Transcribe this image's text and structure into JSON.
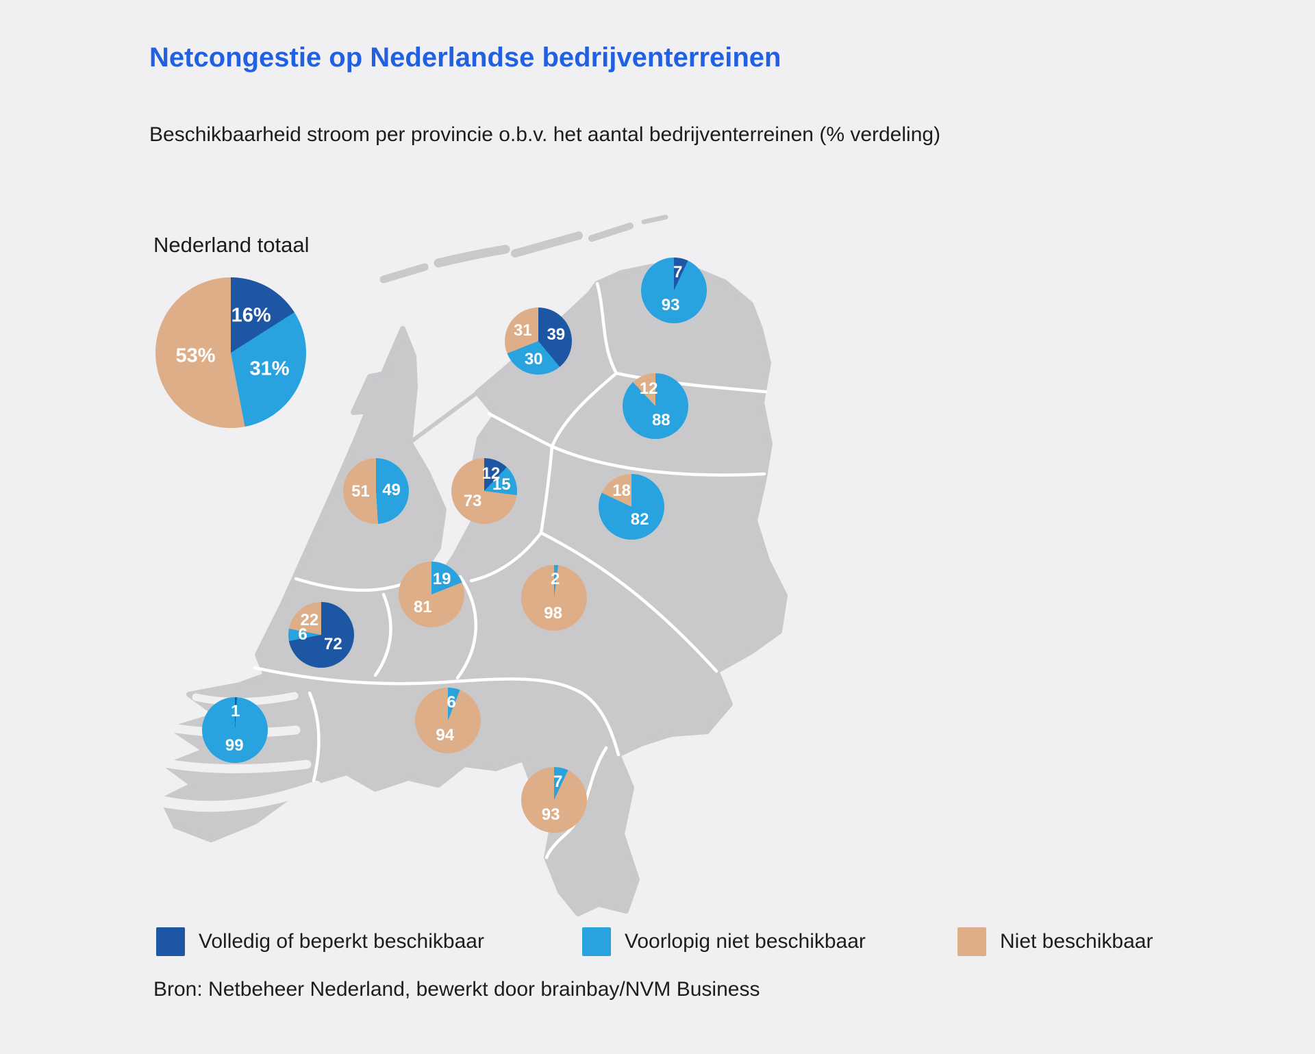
{
  "header": {
    "title": "Netcongestie op Nederlandse bedrijventerreinen",
    "subtitle": "Beschikbaarheid stroom per provincie o.b.v. het aantal bedrijventerreinen (% verdeling)"
  },
  "map_label": "Nederland totaal",
  "legend": {
    "items": [
      {
        "key": "volledig",
        "label": "Volledig of beperkt beschikbaar"
      },
      {
        "key": "voorlopig",
        "label": "Voorlopig niet beschikbaar"
      },
      {
        "key": "niet",
        "label": "Niet beschikbaar"
      }
    ]
  },
  "footer": {
    "source": "Bron: Netbeheer Nederland, bewerkt door brainbay/NVM Business"
  },
  "colors": {
    "volledig": "#1d56a2",
    "voorlopig": "#29a3df",
    "niet": "#deae88",
    "title": "#2160e0",
    "background": "#f0f0f2",
    "map_land": "#c9c9cc",
    "map_border": "#ffffff",
    "text": "#1d1d1f"
  },
  "chart_data": {
    "type": "pie",
    "title": "Netcongestie op Nederlandse bedrijventerreinen",
    "subtitle": "Beschikbaarheid stroom per provincie o.b.v. het aantal bedrijventerreinen (% verdeling)",
    "value_unit": "percent of business parks",
    "legend": [
      "Volledig of beperkt beschikbaar",
      "Voorlopig niet beschikbaar",
      "Niet beschikbaar"
    ],
    "series_keys": [
      "volledig",
      "voorlopig",
      "niet"
    ],
    "pies": [
      {
        "id": "nederland-totaal",
        "region": "Nederland totaal",
        "segments": [
          {
            "key": "volledig",
            "value": 16,
            "label": "16%"
          },
          {
            "key": "voorlopig",
            "value": 31,
            "label": "31%"
          },
          {
            "key": "niet",
            "value": 53,
            "label": "53%"
          }
        ]
      },
      {
        "id": "groningen",
        "region": "Groningen",
        "segments": [
          {
            "key": "volledig",
            "value": 7,
            "label": "7"
          },
          {
            "key": "voorlopig",
            "value": 93,
            "label": "93"
          }
        ]
      },
      {
        "id": "friesland",
        "region": "Friesland",
        "segments": [
          {
            "key": "volledig",
            "value": 39,
            "label": "39"
          },
          {
            "key": "voorlopig",
            "value": 30,
            "label": "30"
          },
          {
            "key": "niet",
            "value": 31,
            "label": "31"
          }
        ]
      },
      {
        "id": "drenthe",
        "region": "Drenthe",
        "segments": [
          {
            "key": "voorlopig",
            "value": 88,
            "label": "88"
          },
          {
            "key": "niet",
            "value": 12,
            "label": "12"
          }
        ]
      },
      {
        "id": "overijssel",
        "region": "Overijssel",
        "segments": [
          {
            "key": "voorlopig",
            "value": 82,
            "label": "82"
          },
          {
            "key": "niet",
            "value": 18,
            "label": "18"
          }
        ]
      },
      {
        "id": "flevoland",
        "region": "Flevoland",
        "segments": [
          {
            "key": "volledig",
            "value": 12,
            "label": "12"
          },
          {
            "key": "voorlopig",
            "value": 15,
            "label": "15"
          },
          {
            "key": "niet",
            "value": 73,
            "label": "73"
          }
        ]
      },
      {
        "id": "noord-holland",
        "region": "Noord-Holland",
        "segments": [
          {
            "key": "voorlopig",
            "value": 49,
            "label": "49"
          },
          {
            "key": "niet",
            "value": 51,
            "label": "51"
          }
        ]
      },
      {
        "id": "utrecht",
        "region": "Utrecht",
        "segments": [
          {
            "key": "voorlopig",
            "value": 19,
            "label": "19"
          },
          {
            "key": "niet",
            "value": 81,
            "label": "81"
          }
        ]
      },
      {
        "id": "gelderland",
        "region": "Gelderland",
        "segments": [
          {
            "key": "voorlopig",
            "value": 2,
            "label": "2"
          },
          {
            "key": "niet",
            "value": 98,
            "label": "98"
          }
        ]
      },
      {
        "id": "zuid-holland",
        "region": "Zuid-Holland",
        "segments": [
          {
            "key": "volledig",
            "value": 72,
            "label": "72"
          },
          {
            "key": "voorlopig",
            "value": 6,
            "label": "6"
          },
          {
            "key": "niet",
            "value": 22,
            "label": "22"
          }
        ]
      },
      {
        "id": "zeeland",
        "region": "Zeeland",
        "segments": [
          {
            "key": "volledig",
            "value": 1,
            "label": "1"
          },
          {
            "key": "voorlopig",
            "value": 99,
            "label": "99"
          }
        ]
      },
      {
        "id": "noord-brabant",
        "region": "Noord-Brabant",
        "segments": [
          {
            "key": "voorlopig",
            "value": 6,
            "label": "6"
          },
          {
            "key": "niet",
            "value": 94,
            "label": "94"
          }
        ]
      },
      {
        "id": "limburg",
        "region": "Limburg",
        "segments": [
          {
            "key": "voorlopig",
            "value": 7,
            "label": "7"
          },
          {
            "key": "niet",
            "value": 93,
            "label": "93"
          }
        ]
      }
    ]
  }
}
